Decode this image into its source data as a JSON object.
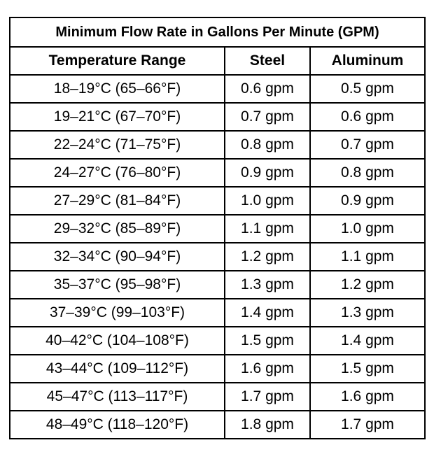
{
  "table": {
    "title": "Minimum Flow Rate in Gallons Per Minute (GPM)",
    "headers": [
      "Temperature Range",
      "Steel",
      "Aluminum"
    ],
    "rows": [
      [
        "18–19°C (65–66°F)",
        "0.6 gpm",
        "0.5 gpm"
      ],
      [
        "19–21°C (67–70°F)",
        "0.7 gpm",
        "0.6 gpm"
      ],
      [
        "22–24°C (71–75°F)",
        "0.8 gpm",
        "0.7 gpm"
      ],
      [
        "24–27°C (76–80°F)",
        "0.9 gpm",
        "0.8 gpm"
      ],
      [
        "27–29°C (81–84°F)",
        "1.0 gpm",
        "0.9 gpm"
      ],
      [
        "29–32°C (85–89°F)",
        "1.1 gpm",
        "1.0 gpm"
      ],
      [
        "32–34°C (90–94°F)",
        "1.2 gpm",
        "1.1 gpm"
      ],
      [
        "35–37°C (95–98°F)",
        "1.3 gpm",
        "1.2 gpm"
      ],
      [
        "37–39°C (99–103°F)",
        "1.4 gpm",
        "1.3 gpm"
      ],
      [
        "40–42°C (104–108°F)",
        "1.5 gpm",
        "1.4 gpm"
      ],
      [
        "43–44°C (109–112°F)",
        "1.6 gpm",
        "1.5 gpm"
      ],
      [
        "45–47°C (113–117°F)",
        "1.7 gpm",
        "1.6 gpm"
      ],
      [
        "48–49°C (118–120°F)",
        "1.8 gpm",
        "1.7 gpm"
      ]
    ]
  }
}
